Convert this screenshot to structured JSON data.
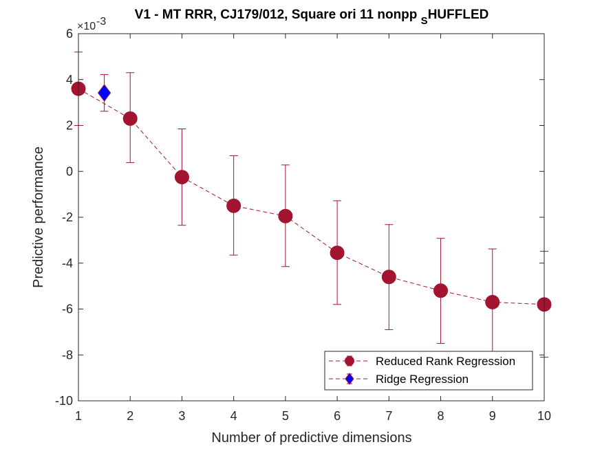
{
  "chart_data": {
    "type": "line",
    "title_main": "V1 - MT RRR, CJ179/012, Square ori 11 nonpp ",
    "title_sub": "S",
    "title_rest": "HUFFLED",
    "xlabel": "Number of predictive dimensions",
    "ylabel": "Predictive performance",
    "y_exponent_label": "×10",
    "y_exponent_power": "-3",
    "xlim": [
      1,
      10
    ],
    "ylim": [
      -10,
      6
    ],
    "xticks": [
      "1",
      "2",
      "3",
      "4",
      "5",
      "6",
      "7",
      "8",
      "9",
      "10"
    ],
    "yticks": [
      "-10",
      "-8",
      "-6",
      "-4",
      "-2",
      "0",
      "2",
      "4",
      "6"
    ],
    "grid": false,
    "legend_position": "bottom-right",
    "series": [
      {
        "name": "Reduced Rank Regression",
        "color": "#A2142F",
        "marker": "circle",
        "line_style": "dashed",
        "x": [
          1,
          2,
          3,
          4,
          5,
          6,
          7,
          8,
          9,
          10
        ],
        "y": [
          3.6,
          2.3,
          -0.25,
          -1.5,
          -1.95,
          -3.55,
          -4.6,
          -5.2,
          -5.7,
          -5.8
        ],
        "err_low": [
          2.0,
          0.38,
          -2.35,
          -3.65,
          -4.15,
          -5.8,
          -6.9,
          -7.5,
          -8.0,
          -8.1
        ],
        "err_high": [
          5.2,
          4.3,
          1.85,
          0.68,
          0.28,
          -1.28,
          -2.32,
          -2.92,
          -3.38,
          -3.48
        ]
      },
      {
        "name": "Ridge Regression",
        "color": "#0000FF",
        "marker_edge": "#A2142F",
        "marker": "diamond",
        "line_style": "dashed",
        "x": [
          1.5
        ],
        "y": [
          3.42
        ],
        "err_low": [
          2.62
        ],
        "err_high": [
          4.22
        ]
      }
    ]
  }
}
